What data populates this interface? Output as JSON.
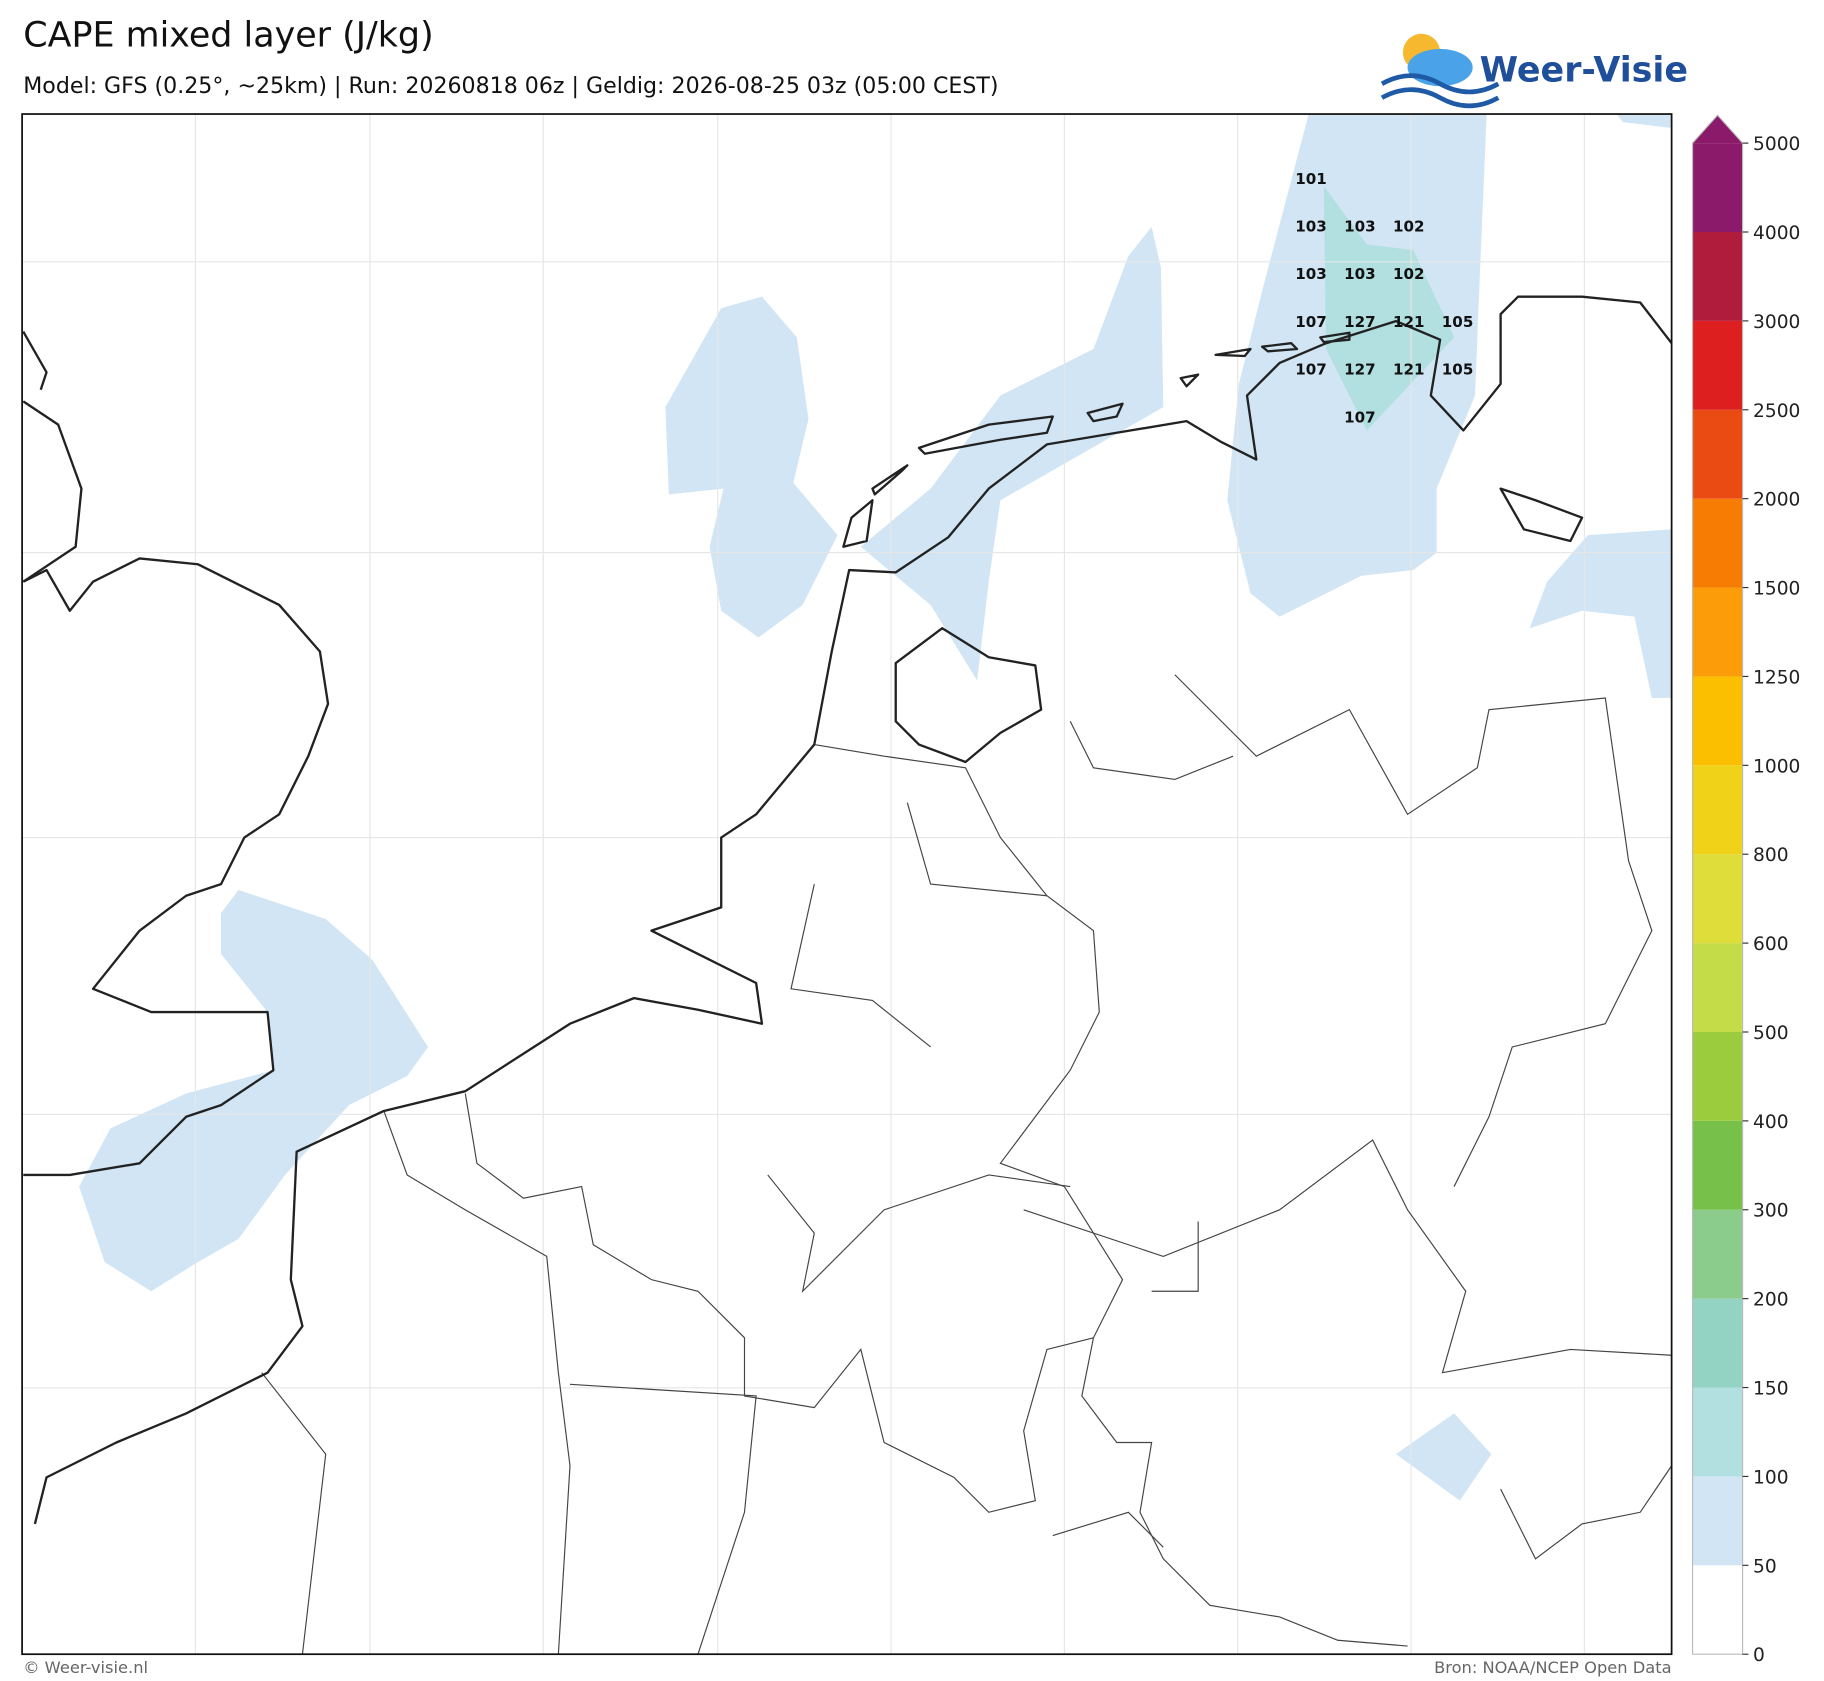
{
  "header": {
    "title": "CAPE mixed layer (J/kg)",
    "subtitle": "Model: GFS (0.25°, ~25km)  |  Run: 20260818 06z  |  Geldig: 2026-08-25 03z (05:00 CEST)",
    "logo": "Weer-Visie"
  },
  "point_labels": [
    101,
    103,
    103,
    102,
    103,
    103,
    102,
    107,
    127,
    121,
    105,
    107,
    127,
    121,
    105,
    107
  ],
  "colorbar": {
    "ticks": [
      0,
      50,
      100,
      150,
      200,
      300,
      400,
      500,
      600,
      800,
      1000,
      1250,
      1500,
      2000,
      2500,
      3000,
      4000,
      5000
    ],
    "colors": [
      "#ffffff",
      "#d1e5f4",
      "#b2dfdf",
      "#93d3c3",
      "#8bcb8b",
      "#77c14a",
      "#9bcc3e",
      "#c4dc47",
      "#dedd3a",
      "#f0d318",
      "#fbbf00",
      "#fb9c08",
      "#f77c04",
      "#ea4b12",
      "#dd1f1f",
      "#b01c3c",
      "#8b1a6b"
    ],
    "extend_color": "#8b1a6b"
  },
  "footer": {
    "left": "© Weer-visie.nl",
    "right": "Bron: NOAA/NCEP Open Data"
  }
}
